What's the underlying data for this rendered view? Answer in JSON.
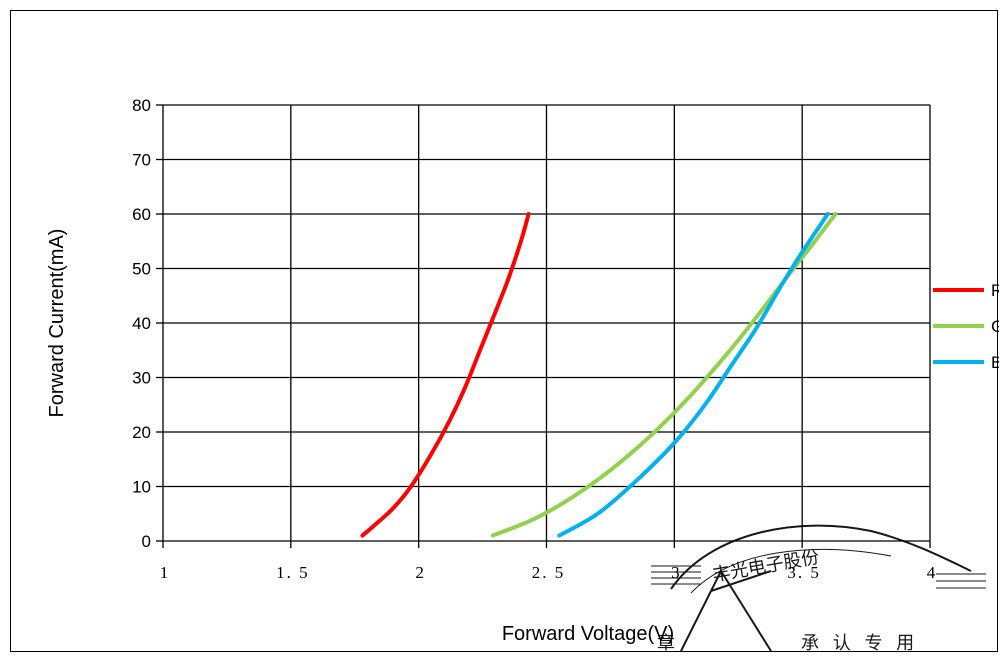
{
  "chart_data": {
    "type": "line",
    "title": "",
    "xlabel": "Forward Voltage(V)",
    "ylabel": "Forward Current(mA)",
    "xlim": [
      1,
      4
    ],
    "ylim": [
      0,
      80
    ],
    "x_ticks": [
      "1",
      "1.5",
      "2",
      "2.5",
      "3",
      "3.5",
      "4"
    ],
    "y_ticks": [
      "0",
      "10",
      "20",
      "30",
      "40",
      "50",
      "60",
      "70",
      "80"
    ],
    "grid": true,
    "legend_position": "right",
    "series": [
      {
        "name": "R",
        "color": "#ff0000",
        "points": [
          [
            1.78,
            1
          ],
          [
            1.83,
            3
          ],
          [
            1.9,
            6
          ],
          [
            1.97,
            10
          ],
          [
            2.05,
            16
          ],
          [
            2.12,
            22
          ],
          [
            2.18,
            28
          ],
          [
            2.24,
            35
          ],
          [
            2.3,
            42
          ],
          [
            2.35,
            48
          ],
          [
            2.4,
            55
          ],
          [
            2.43,
            60
          ]
        ]
      },
      {
        "name": "G",
        "color": "#92d050",
        "points": [
          [
            2.29,
            1
          ],
          [
            2.45,
            4
          ],
          [
            2.6,
            8
          ],
          [
            2.75,
            13
          ],
          [
            2.9,
            19
          ],
          [
            3.05,
            26
          ],
          [
            3.2,
            34
          ],
          [
            3.32,
            41
          ],
          [
            3.45,
            49
          ],
          [
            3.55,
            55
          ],
          [
            3.63,
            60
          ]
        ]
      },
      {
        "name": "B",
        "color": "#00b0f0",
        "points": [
          [
            2.55,
            1
          ],
          [
            2.7,
            5
          ],
          [
            2.85,
            11
          ],
          [
            3.0,
            18
          ],
          [
            3.12,
            25
          ],
          [
            3.22,
            32
          ],
          [
            3.32,
            39
          ],
          [
            3.42,
            47
          ],
          [
            3.5,
            53
          ],
          [
            3.6,
            60
          ]
        ]
      }
    ]
  },
  "stamp": {
    "arc_text": "丰光电子股份",
    "bottom_text": "承 认 专 用",
    "left_char": "章"
  }
}
